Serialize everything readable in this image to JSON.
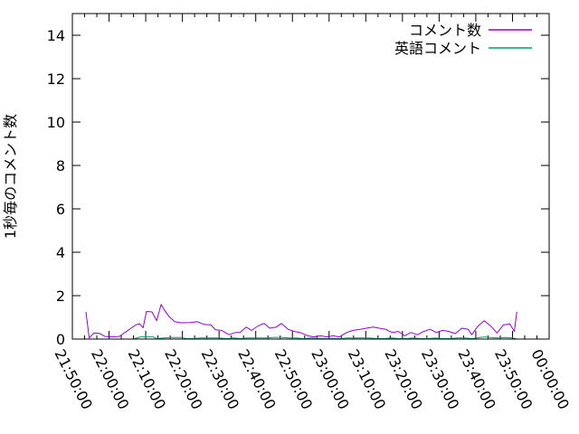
{
  "chart_data": {
    "type": "line",
    "title": "",
    "xlabel": "",
    "ylabel": "1秒毎のコメント数",
    "ylim": [
      0,
      15
    ],
    "ytick_values": [
      0,
      2,
      4,
      6,
      8,
      10,
      12,
      14
    ],
    "x_range_minutes": [
      0,
      130
    ],
    "xtick_minutes": [
      0,
      10,
      20,
      30,
      40,
      50,
      60,
      70,
      80,
      90,
      100,
      110,
      120,
      130
    ],
    "xtick_labels": [
      "21:50:00",
      "22:00:00",
      "22:10:00",
      "22:20:00",
      "22:30:00",
      "22:40:00",
      "22:50:00",
      "23:00:00",
      "23:10:00",
      "23:20:00",
      "23:30:00",
      "23:40:00",
      "23:50:00",
      "00:00:00"
    ],
    "xtick_minor_divisions": 3,
    "grid": false,
    "legend_position": "top-right-inside",
    "background_color": "#ffffff",
    "axis_color": "#000000",
    "series": [
      {
        "name": "コメント数",
        "color": "#9400d3",
        "points": [
          [
            3.7,
            1.25
          ],
          [
            4.6,
            0.05
          ],
          [
            5.9,
            0.28
          ],
          [
            7.4,
            0.26
          ],
          [
            8.9,
            0.12
          ],
          [
            10.9,
            0.1
          ],
          [
            12.8,
            0.12
          ],
          [
            14.3,
            0.3
          ],
          [
            16.0,
            0.5
          ],
          [
            17.3,
            0.65
          ],
          [
            18.3,
            0.71
          ],
          [
            19.3,
            0.52
          ],
          [
            20.2,
            1.27
          ],
          [
            21.7,
            1.25
          ],
          [
            23.0,
            0.85
          ],
          [
            24.2,
            1.59
          ],
          [
            25.2,
            1.31
          ],
          [
            26.4,
            1.03
          ],
          [
            27.9,
            0.8
          ],
          [
            29.6,
            0.75
          ],
          [
            32.1,
            0.76
          ],
          [
            34.1,
            0.8
          ],
          [
            35.8,
            0.68
          ],
          [
            37.8,
            0.65
          ],
          [
            39.0,
            0.43
          ],
          [
            40.7,
            0.4
          ],
          [
            42.7,
            0.2
          ],
          [
            44.4,
            0.3
          ],
          [
            45.7,
            0.3
          ],
          [
            47.4,
            0.55
          ],
          [
            48.9,
            0.4
          ],
          [
            50.6,
            0.6
          ],
          [
            52.3,
            0.72
          ],
          [
            53.8,
            0.5
          ],
          [
            55.6,
            0.55
          ],
          [
            57.0,
            0.72
          ],
          [
            58.8,
            0.45
          ],
          [
            60.5,
            0.35
          ],
          [
            62.2,
            0.3
          ],
          [
            64.2,
            0.15
          ],
          [
            65.9,
            0.1
          ],
          [
            67.7,
            0.15
          ],
          [
            69.4,
            0.1
          ],
          [
            71.1,
            0.15
          ],
          [
            72.8,
            0.1
          ],
          [
            74.8,
            0.3
          ],
          [
            76.5,
            0.4
          ],
          [
            78.5,
            0.45
          ],
          [
            80.2,
            0.5
          ],
          [
            82.0,
            0.55
          ],
          [
            83.7,
            0.5
          ],
          [
            85.4,
            0.45
          ],
          [
            87.2,
            0.3
          ],
          [
            88.9,
            0.35
          ],
          [
            90.6,
            0.15
          ],
          [
            92.3,
            0.3
          ],
          [
            94.1,
            0.2
          ],
          [
            95.8,
            0.35
          ],
          [
            97.5,
            0.45
          ],
          [
            99.3,
            0.3
          ],
          [
            101.0,
            0.4
          ],
          [
            102.7,
            0.35
          ],
          [
            104.4,
            0.25
          ],
          [
            106.2,
            0.5
          ],
          [
            107.9,
            0.45
          ],
          [
            108.9,
            0.2
          ],
          [
            110.6,
            0.6
          ],
          [
            112.3,
            0.84
          ],
          [
            114.1,
            0.6
          ],
          [
            115.8,
            0.28
          ],
          [
            117.5,
            0.65
          ],
          [
            119.3,
            0.7
          ],
          [
            120.5,
            0.35
          ],
          [
            121.2,
            1.25
          ]
        ]
      },
      {
        "name": "英語コメント",
        "color": "#009e73",
        "points": [
          [
            17.0,
            0.02
          ],
          [
            18.5,
            0.1
          ],
          [
            20.0,
            0.1
          ],
          [
            22.0,
            0.1
          ],
          [
            23.0,
            0.02
          ],
          [
            25.0,
            0.05
          ],
          [
            26.5,
            0.07
          ],
          [
            28.0,
            0.07
          ],
          [
            30.0,
            0.07
          ],
          [
            31.0,
            0.02
          ],
          [
            33.0,
            0.02
          ],
          [
            35.0,
            0.05
          ],
          [
            36.5,
            0.05
          ],
          [
            38.0,
            0.05
          ],
          [
            40.0,
            0.05
          ],
          [
            42.0,
            0.02
          ],
          [
            44.0,
            0.05
          ],
          [
            46.0,
            0.02
          ],
          [
            47.5,
            0.05
          ],
          [
            49.0,
            0.05
          ],
          [
            51.0,
            0.05
          ],
          [
            53.0,
            0.05
          ],
          [
            55.0,
            0.08
          ],
          [
            57.0,
            0.08
          ],
          [
            59.0,
            0.05
          ],
          [
            61.0,
            0.05
          ],
          [
            63.0,
            0.02
          ],
          [
            65.0,
            0.05
          ],
          [
            67.0,
            0.02
          ],
          [
            69.0,
            0.02
          ],
          [
            71.0,
            0.02
          ],
          [
            73.0,
            0.02
          ],
          [
            75.0,
            0.05
          ],
          [
            77.0,
            0.05
          ],
          [
            79.0,
            0.05
          ],
          [
            81.0,
            0.05
          ],
          [
            83.0,
            0.02
          ],
          [
            85.0,
            0.02
          ],
          [
            87.0,
            0.05
          ],
          [
            89.0,
            0.02
          ],
          [
            91.0,
            0.02
          ],
          [
            93.0,
            0.05
          ],
          [
            95.0,
            0.02
          ],
          [
            97.0,
            0.02
          ],
          [
            99.0,
            0.05
          ],
          [
            101.0,
            0.02
          ],
          [
            103.0,
            0.02
          ],
          [
            105.0,
            0.05
          ],
          [
            107.0,
            0.05
          ],
          [
            109.0,
            0.02
          ],
          [
            111.0,
            0.07
          ],
          [
            112.5,
            0.1
          ],
          [
            114.0,
            0.07
          ],
          [
            116.0,
            0.05
          ],
          [
            118.0,
            0.07
          ],
          [
            120.0,
            0.05
          ],
          [
            121.0,
            0.02
          ]
        ]
      }
    ]
  }
}
